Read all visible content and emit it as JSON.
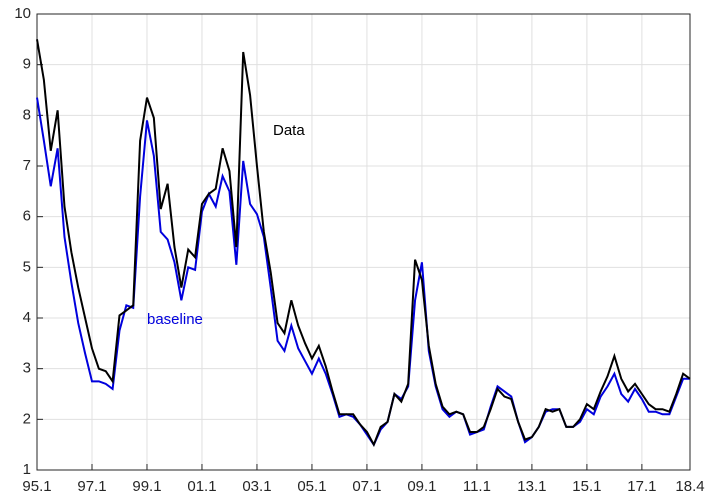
{
  "chart_data": {
    "type": "line",
    "x": [
      1995,
      1995.25,
      1995.5,
      1995.75,
      1996,
      1996.25,
      1996.5,
      1996.75,
      1997,
      1997.25,
      1997.5,
      1997.75,
      1998,
      1998.25,
      1998.5,
      1998.75,
      1999,
      1999.25,
      1999.5,
      1999.75,
      2000,
      2000.25,
      2000.5,
      2000.75,
      2001,
      2001.25,
      2001.5,
      2001.75,
      2002,
      2002.25,
      2002.5,
      2002.75,
      2003,
      2003.25,
      2003.5,
      2003.75,
      2004,
      2004.25,
      2004.5,
      2004.75,
      2005,
      2005.25,
      2005.5,
      2005.75,
      2006,
      2006.25,
      2006.5,
      2006.75,
      2007,
      2007.25,
      2007.5,
      2007.75,
      2008,
      2008.25,
      2008.5,
      2008.75,
      2009,
      2009.25,
      2009.5,
      2009.75,
      2010,
      2010.25,
      2010.5,
      2010.75,
      2011,
      2011.25,
      2011.5,
      2011.75,
      2012,
      2012.25,
      2012.5,
      2012.75,
      2013,
      2013.25,
      2013.5,
      2013.75,
      2014,
      2014.25,
      2014.5,
      2014.75,
      2015,
      2015.25,
      2015.5,
      2015.75,
      2016,
      2016.25,
      2016.5,
      2016.75,
      2017,
      2017.25,
      2017.5,
      2017.75,
      2018,
      2018.25,
      2018.5,
      2018.75
    ],
    "series": [
      {
        "name": "Data",
        "color": "#000000",
        "values": [
          9.5,
          8.7,
          7.3,
          8.1,
          6.2,
          5.3,
          4.6,
          4.0,
          3.4,
          3.0,
          2.95,
          2.75,
          4.05,
          4.15,
          4.25,
          7.5,
          8.35,
          7.95,
          6.15,
          6.65,
          5.4,
          4.6,
          5.35,
          5.2,
          6.25,
          6.45,
          6.55,
          7.35,
          6.9,
          5.4,
          9.25,
          8.4,
          7.0,
          5.7,
          4.9,
          3.9,
          3.7,
          4.35,
          3.85,
          3.5,
          3.2,
          3.45,
          3.05,
          2.55,
          2.1,
          2.1,
          2.1,
          1.9,
          1.75,
          1.5,
          1.85,
          1.95,
          2.5,
          2.35,
          2.7,
          5.15,
          4.75,
          3.45,
          2.7,
          2.25,
          2.1,
          2.15,
          2.1,
          1.75,
          1.75,
          1.85,
          2.2,
          2.6,
          2.45,
          2.4,
          1.95,
          1.6,
          1.65,
          1.85,
          2.2,
          2.15,
          2.2,
          1.85,
          1.85,
          2.0,
          2.3,
          2.2,
          2.55,
          2.85,
          3.25,
          2.8,
          2.55,
          2.7,
          2.5,
          2.3,
          2.2,
          2.2,
          2.15,
          2.5,
          2.9,
          2.8
        ]
      },
      {
        "name": "baseline",
        "color": "#0000dd",
        "values": [
          8.35,
          7.5,
          6.6,
          7.35,
          5.6,
          4.7,
          3.9,
          3.3,
          2.75,
          2.75,
          2.7,
          2.6,
          3.75,
          4.25,
          4.2,
          6.4,
          7.9,
          7.2,
          5.7,
          5.55,
          5.1,
          4.35,
          5.0,
          4.95,
          6.1,
          6.45,
          6.2,
          6.8,
          6.5,
          5.05,
          7.1,
          6.25,
          6.05,
          5.6,
          4.6,
          3.55,
          3.35,
          3.85,
          3.4,
          3.15,
          2.9,
          3.2,
          2.9,
          2.5,
          2.05,
          2.1,
          2.05,
          1.9,
          1.7,
          1.5,
          1.8,
          1.95,
          2.5,
          2.4,
          2.65,
          4.35,
          5.1,
          3.35,
          2.65,
          2.2,
          2.05,
          2.15,
          2.1,
          1.7,
          1.75,
          1.8,
          2.25,
          2.65,
          2.55,
          2.45,
          1.95,
          1.55,
          1.65,
          1.85,
          2.15,
          2.2,
          2.2,
          1.85,
          1.85,
          1.95,
          2.2,
          2.1,
          2.45,
          2.65,
          2.9,
          2.5,
          2.35,
          2.6,
          2.4,
          2.15,
          2.15,
          2.1,
          2.1,
          2.45,
          2.8,
          2.8
        ]
      }
    ],
    "xlim": [
      1995,
      2018.75
    ],
    "xticks": [
      {
        "value": 1995,
        "label": "95.1"
      },
      {
        "value": 1997,
        "label": "97.1"
      },
      {
        "value": 1999,
        "label": "99.1"
      },
      {
        "value": 2001,
        "label": "01.1"
      },
      {
        "value": 2003,
        "label": "03.1"
      },
      {
        "value": 2005,
        "label": "05.1"
      },
      {
        "value": 2007,
        "label": "07.1"
      },
      {
        "value": 2009,
        "label": "09.1"
      },
      {
        "value": 2011,
        "label": "11.1"
      },
      {
        "value": 2013,
        "label": "13.1"
      },
      {
        "value": 2015,
        "label": "15.1"
      },
      {
        "value": 2017,
        "label": "17.1"
      },
      {
        "value": 2018.75,
        "label": "18.4"
      }
    ],
    "ylim": [
      1,
      10
    ],
    "yticks": [
      1,
      2,
      3,
      4,
      5,
      6,
      7,
      8,
      9,
      10
    ],
    "grid": true
  }
}
